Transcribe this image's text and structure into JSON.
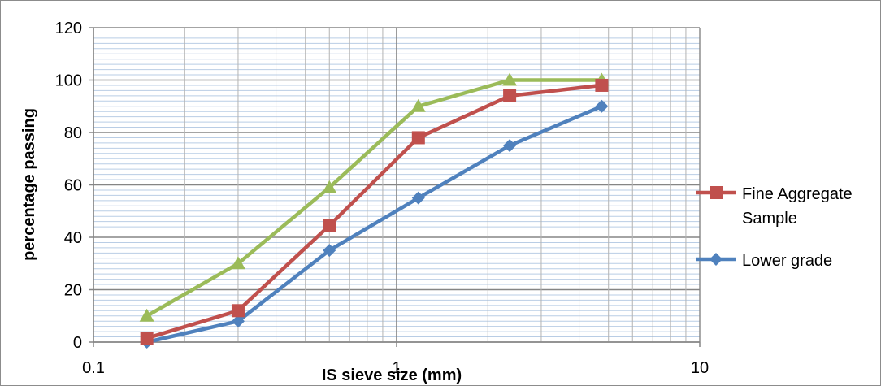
{
  "chart_data": {
    "type": "line",
    "xscale": "log",
    "xlim": [
      0.1,
      10
    ],
    "ylim": [
      0,
      120
    ],
    "xlabel": "IS sieve size (mm)",
    "ylabel": "percentage passing",
    "x_ticks": [
      "0.1",
      "1",
      "10"
    ],
    "y_ticks": [
      "0",
      "20",
      "40",
      "60",
      "80",
      "100",
      "120"
    ],
    "grid": true,
    "legend_position": "right",
    "x": [
      0.15,
      0.3,
      0.6,
      1.18,
      2.36,
      4.75
    ],
    "series": [
      {
        "name": "Fine Aggregate Sample",
        "legend_lines": [
          "Fine Aggregate",
          "Sample"
        ],
        "color": "#c0504d",
        "marker": "square",
        "values": [
          1.5,
          12,
          44.5,
          78,
          94,
          98
        ],
        "in_legend": true
      },
      {
        "name": "Lower grade",
        "legend_lines": [
          "Lower grade"
        ],
        "color": "#4f81bd",
        "marker": "diamond",
        "values": [
          0,
          8,
          35,
          55,
          75,
          90
        ],
        "in_legend": true
      },
      {
        "name": "",
        "legend_lines": [],
        "color": "#9bbb59",
        "marker": "triangle",
        "values": [
          10,
          30,
          59,
          90,
          100,
          100
        ],
        "in_legend": false
      }
    ]
  }
}
